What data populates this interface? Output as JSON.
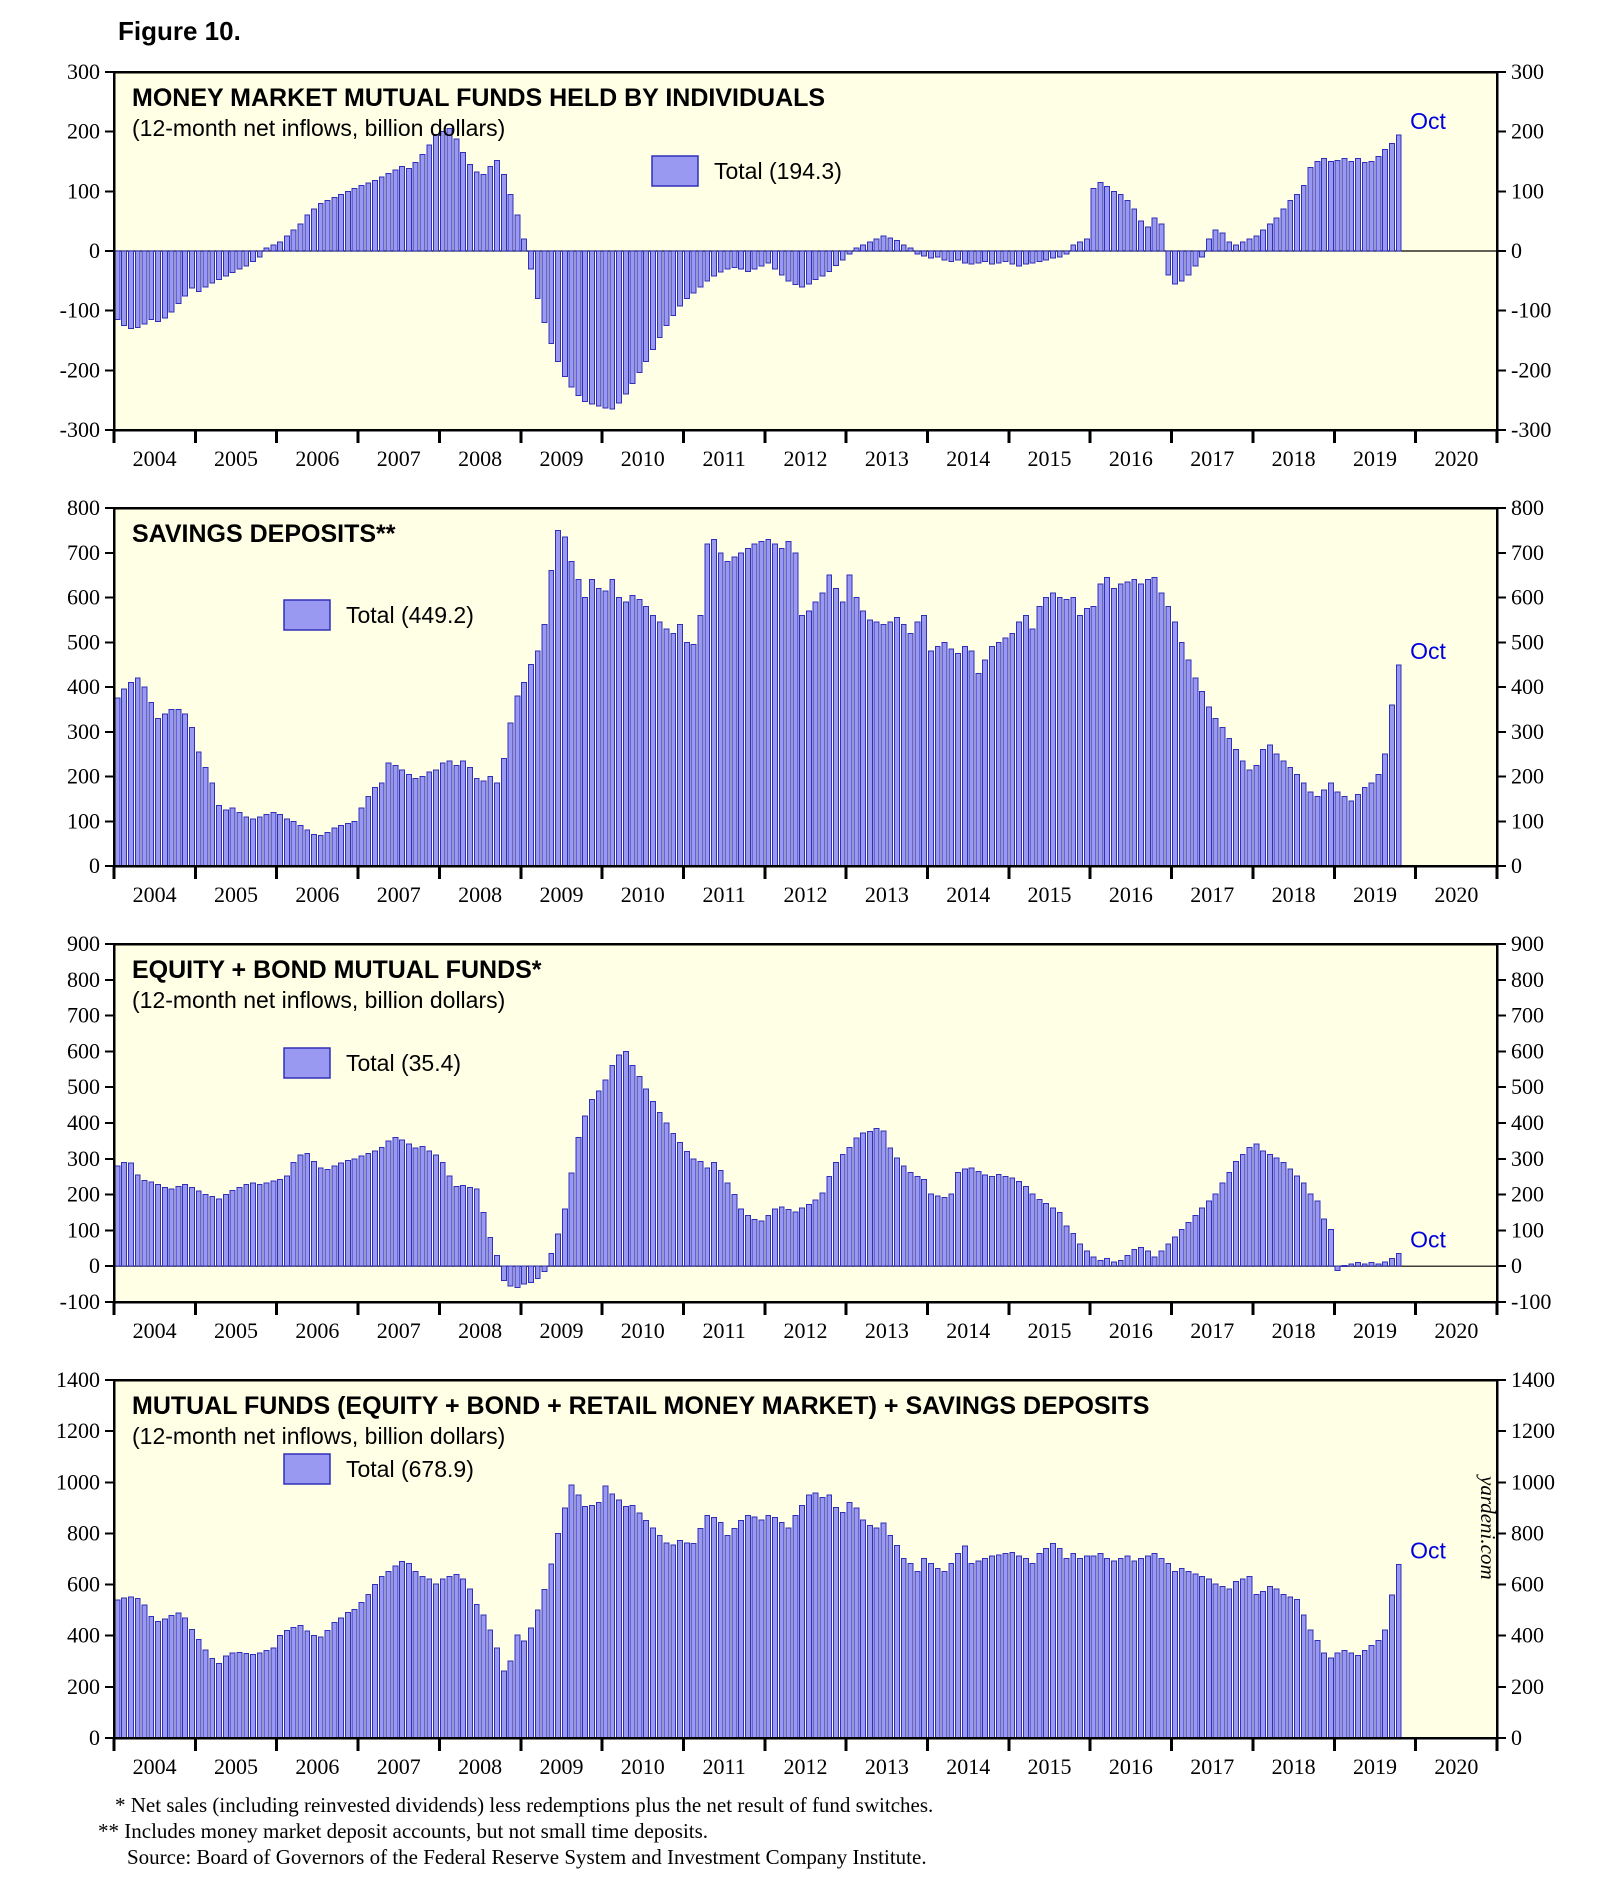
{
  "figure_label": "Figure 10.",
  "watermark": "yardeni.com",
  "footnotes": [
    "* Net sales (including reinvested dividends) less redemptions plus the net result of fund switches.",
    "** Includes money market deposit accounts, but not small time deposits.",
    "Source: Board of Governors of the Federal Reserve System and Investment Company Institute."
  ],
  "colors": {
    "bar_fill": "#9999F2",
    "bar_stroke": "#3030B8",
    "plot_bg": "#FFFFE6",
    "frame": "#000000",
    "annotation": "#0000DC",
    "text": "#000000"
  },
  "x_axis": {
    "years": [
      "2004",
      "2005",
      "2006",
      "2007",
      "2008",
      "2009",
      "2010",
      "2011",
      "2012",
      "2013",
      "2014",
      "2015",
      "2016",
      "2017",
      "2018",
      "2019",
      "2020"
    ],
    "frequency": "monthly",
    "data_start": "Jan 2004",
    "data_end": "Oct 2019"
  },
  "chart_data": [
    {
      "type": "bar",
      "title": "MONEY MARKET MUTUAL FUNDS HELD BY INDIVIDUALS",
      "subtitle": "(12-month net inflows, billion dollars)",
      "legend": "Total (194.3)",
      "total": 194.3,
      "last_month_label": "Oct",
      "ylim": [
        -300,
        300
      ],
      "ytick_step": 100,
      "values": [
        -115,
        -125,
        -130,
        -128,
        -122,
        -115,
        -118,
        -112,
        -102,
        -88,
        -75,
        -62,
        -68,
        -60,
        -54,
        -48,
        -42,
        -36,
        -30,
        -25,
        -18,
        -10,
        5,
        10,
        15,
        25,
        35,
        45,
        60,
        70,
        80,
        85,
        90,
        95,
        100,
        105,
        110,
        114,
        118,
        124,
        130,
        136,
        142,
        138,
        148,
        162,
        178,
        195,
        200,
        205,
        188,
        165,
        145,
        132,
        128,
        142,
        152,
        128,
        95,
        60,
        20,
        -30,
        -80,
        -120,
        -155,
        -185,
        -210,
        -228,
        -242,
        -252,
        -256,
        -260,
        -263,
        -265,
        -255,
        -240,
        -222,
        -204,
        -185,
        -165,
        -145,
        -125,
        -108,
        -92,
        -80,
        -70,
        -60,
        -50,
        -42,
        -35,
        -30,
        -28,
        -30,
        -34,
        -30,
        -25,
        -20,
        -30,
        -40,
        -50,
        -56,
        -60,
        -55,
        -48,
        -42,
        -34,
        -24,
        -15,
        -5,
        5,
        10,
        15,
        20,
        25,
        22,
        18,
        10,
        5,
        -5,
        -8,
        -12,
        -10,
        -15,
        -18,
        -15,
        -20,
        -22,
        -20,
        -18,
        -22,
        -20,
        -18,
        -22,
        -25,
        -22,
        -20,
        -18,
        -15,
        -12,
        -10,
        -5,
        10,
        15,
        20,
        105,
        115,
        108,
        100,
        95,
        85,
        70,
        50,
        40,
        55,
        45,
        -40,
        -55,
        -50,
        -40,
        -25,
        -10,
        20,
        35,
        30,
        15,
        10,
        15,
        20,
        25,
        35,
        45,
        55,
        70,
        85,
        95,
        110,
        140,
        150,
        155,
        150,
        152,
        155,
        150,
        155,
        148,
        150,
        158,
        170,
        180,
        194.3
      ]
    },
    {
      "type": "bar",
      "title": "SAVINGS DEPOSITS**",
      "subtitle": "",
      "legend": "Total (449.2)",
      "total": 449.2,
      "last_month_label": "Oct",
      "ylim": [
        0,
        800
      ],
      "ytick_step": 100,
      "values": [
        375,
        395,
        410,
        420,
        400,
        365,
        330,
        340,
        350,
        350,
        340,
        310,
        255,
        220,
        185,
        135,
        125,
        130,
        120,
        110,
        105,
        110,
        115,
        120,
        115,
        105,
        100,
        90,
        80,
        70,
        68,
        75,
        85,
        90,
        95,
        100,
        130,
        155,
        175,
        185,
        230,
        225,
        215,
        205,
        195,
        200,
        210,
        215,
        230,
        235,
        225,
        235,
        220,
        195,
        190,
        200,
        185,
        240,
        320,
        380,
        410,
        450,
        480,
        540,
        660,
        750,
        735,
        680,
        640,
        600,
        640,
        620,
        615,
        640,
        600,
        590,
        605,
        595,
        580,
        560,
        545,
        530,
        520,
        540,
        500,
        495,
        560,
        720,
        730,
        700,
        680,
        690,
        700,
        710,
        720,
        725,
        730,
        720,
        710,
        725,
        700,
        560,
        570,
        590,
        610,
        650,
        620,
        590,
        650,
        600,
        570,
        550,
        545,
        540,
        545,
        555,
        540,
        520,
        545,
        560,
        480,
        490,
        500,
        485,
        475,
        490,
        480,
        430,
        460,
        490,
        500,
        510,
        520,
        545,
        560,
        530,
        580,
        600,
        610,
        600,
        595,
        600,
        560,
        575,
        580,
        630,
        645,
        620,
        630,
        635,
        640,
        630,
        640,
        645,
        610,
        580,
        545,
        500,
        460,
        420,
        390,
        355,
        330,
        310,
        285,
        260,
        235,
        215,
        225,
        260,
        270,
        250,
        235,
        220,
        205,
        185,
        165,
        155,
        170,
        185,
        165,
        155,
        145,
        160,
        175,
        185,
        205,
        250,
        360,
        449.2
      ]
    },
    {
      "type": "bar",
      "title": "EQUITY + BOND MUTUAL FUNDS*",
      "subtitle": "(12-month net inflows, billion dollars)",
      "legend": "Total (35.4)",
      "total": 35.4,
      "last_month_label": "Oct",
      "ylim": [
        -100,
        900
      ],
      "ytick_step": 100,
      "values": [
        280,
        290,
        288,
        255,
        240,
        235,
        228,
        220,
        215,
        222,
        228,
        220,
        210,
        200,
        195,
        188,
        200,
        212,
        220,
        228,
        232,
        228,
        232,
        238,
        242,
        252,
        290,
        310,
        315,
        292,
        275,
        270,
        280,
        288,
        295,
        300,
        308,
        315,
        322,
        332,
        350,
        360,
        352,
        342,
        330,
        335,
        322,
        310,
        290,
        252,
        222,
        225,
        220,
        215,
        150,
        80,
        30,
        -40,
        -55,
        -60,
        -50,
        -45,
        -35,
        -15,
        35,
        90,
        160,
        260,
        360,
        420,
        465,
        490,
        520,
        560,
        590,
        600,
        560,
        530,
        495,
        460,
        430,
        400,
        370,
        345,
        320,
        300,
        292,
        275,
        290,
        268,
        232,
        200,
        160,
        142,
        130,
        126,
        142,
        160,
        165,
        158,
        152,
        162,
        172,
        185,
        205,
        250,
        290,
        312,
        332,
        358,
        372,
        376,
        385,
        378,
        330,
        302,
        280,
        262,
        250,
        242,
        202,
        196,
        192,
        202,
        262,
        272,
        275,
        265,
        255,
        250,
        256,
        250,
        246,
        236,
        222,
        202,
        186,
        175,
        162,
        150,
        112,
        92,
        62,
        42,
        26,
        16,
        22,
        12,
        16,
        30,
        46,
        52,
        42,
        26,
        42,
        62,
        82,
        102,
        122,
        142,
        162,
        182,
        202,
        232,
        262,
        292,
        312,
        332,
        342,
        322,
        312,
        302,
        290,
        272,
        252,
        232,
        202,
        182,
        132,
        102,
        -12,
        2,
        6,
        10,
        6,
        10,
        6,
        12,
        22,
        35.4
      ]
    },
    {
      "type": "bar",
      "title": "MUTUAL FUNDS (EQUITY + BOND + RETAIL MONEY MARKET) + SAVINGS DEPOSITS",
      "subtitle": "(12-month net inflows, billion dollars)",
      "legend": "Total (678.9)",
      "total": 678.9,
      "last_month_label": "Oct",
      "ylim": [
        0,
        1400
      ],
      "ytick_step": 200,
      "values": [
        540,
        548,
        552,
        545,
        520,
        475,
        455,
        465,
        480,
        488,
        470,
        425,
        385,
        345,
        310,
        292,
        320,
        332,
        335,
        330,
        326,
        332,
        342,
        352,
        400,
        420,
        432,
        440,
        418,
        400,
        395,
        420,
        452,
        470,
        490,
        502,
        530,
        562,
        600,
        632,
        652,
        672,
        690,
        682,
        652,
        632,
        622,
        602,
        622,
        632,
        640,
        622,
        582,
        522,
        482,
        422,
        352,
        262,
        302,
        402,
        380,
        430,
        500,
        580,
        680,
        800,
        900,
        990,
        950,
        905,
        910,
        920,
        985,
        955,
        930,
        905,
        910,
        880,
        850,
        822,
        792,
        762,
        755,
        772,
        762,
        760,
        820,
        870,
        862,
        842,
        792,
        820,
        850,
        870,
        865,
        852,
        870,
        862,
        842,
        822,
        870,
        910,
        950,
        958,
        940,
        950,
        902,
        882,
        920,
        900,
        852,
        832,
        822,
        840,
        792,
        752,
        702,
        682,
        652,
        702,
        682,
        662,
        652,
        682,
        722,
        750,
        682,
        692,
        702,
        712,
        715,
        722,
        725,
        712,
        702,
        682,
        722,
        742,
        760,
        742,
        702,
        722,
        702,
        712,
        712,
        722,
        702,
        692,
        702,
        712,
        692,
        702,
        712,
        722,
        702,
        682,
        652,
        662,
        652,
        642,
        632,
        622,
        602,
        592,
        582,
        612,
        622,
        632,
        562,
        572,
        592,
        582,
        562,
        552,
        542,
        482,
        422,
        382,
        332,
        312,
        332,
        342,
        332,
        322,
        342,
        362,
        382,
        422,
        560,
        678.9
      ]
    }
  ]
}
